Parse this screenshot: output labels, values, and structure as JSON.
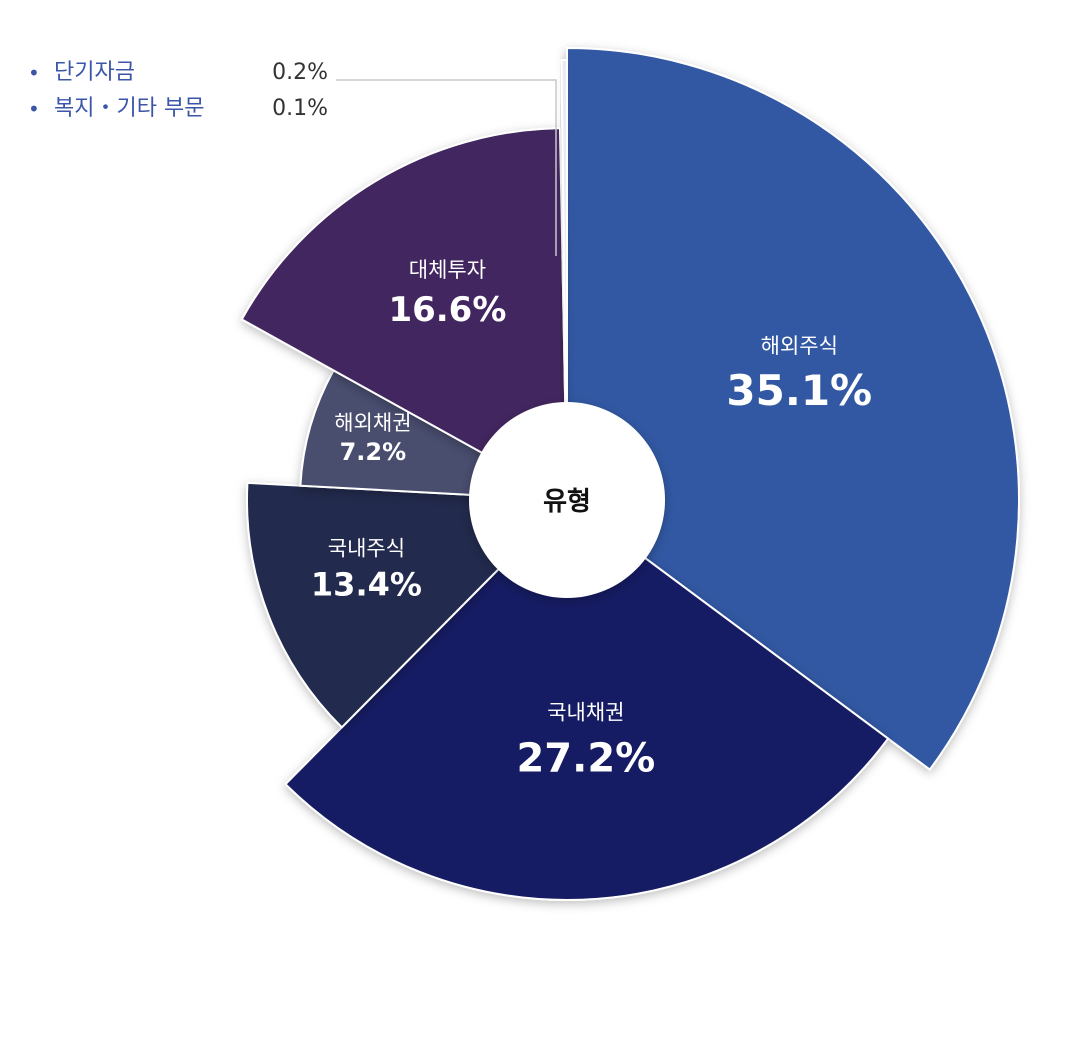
{
  "chart_data": {
    "type": "pie",
    "center_label": "유형",
    "slices": [
      {
        "label": "해외주식",
        "value": 35.1,
        "display": "35.1%",
        "color": "#3358a3"
      },
      {
        "label": "국내채권",
        "value": 27.2,
        "display": "27.2%",
        "color": "#171e63"
      },
      {
        "label": "국내주식",
        "value": 13.4,
        "display": "13.4%",
        "color": "#212a4d"
      },
      {
        "label": "해외채권",
        "value": 7.2,
        "display": "7.2%",
        "color": "#4a4e6e"
      },
      {
        "label": "대체투자",
        "value": 16.6,
        "display": "16.6%",
        "color": "#43255e"
      },
      {
        "label": "복지・기타 부문",
        "value": 0.1,
        "display": "0.1%",
        "color": "#1f1f1f"
      },
      {
        "label": "단기자금",
        "value": 0.2,
        "display": "0.2%",
        "color": "#e8ecf2"
      }
    ]
  },
  "legend": [
    {
      "label": "단기자금",
      "value": "0.2%"
    },
    {
      "label": "복지・기타 부문",
      "value": "0.1%"
    }
  ]
}
